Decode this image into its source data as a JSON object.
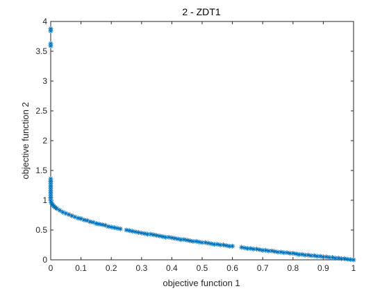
{
  "chart_data": {
    "type": "scatter",
    "title": "2  - ZDT1",
    "xlabel": "objective function 1",
    "ylabel": "objective function 2",
    "xlim": [
      0,
      1
    ],
    "ylim": [
      0,
      4
    ],
    "grid": false,
    "marker": "asterisk",
    "x_ticks": [
      "0",
      "0.1",
      "0.2",
      "0.3",
      "0.4",
      "0.5",
      "0.6",
      "0.7",
      "0.8",
      "0.9",
      "1"
    ],
    "y_ticks": [
      "0",
      "0.5",
      "1",
      "1.5",
      "2",
      "2.5",
      "3",
      "3.5",
      "4"
    ],
    "series": [
      {
        "color": "#0072BD",
        "points": [
          [
            0.0,
            3.88
          ],
          [
            0.0,
            3.84
          ],
          [
            0.0,
            3.63
          ],
          [
            0.0,
            3.59
          ],
          [
            0.0,
            1.36
          ],
          [
            0.0,
            1.32
          ],
          [
            0.0,
            1.28
          ],
          [
            0.0,
            1.24
          ],
          [
            0.0,
            1.2
          ],
          [
            0.0,
            1.16
          ],
          [
            0.0,
            1.12
          ],
          [
            0.0,
            1.08
          ],
          [
            0.0,
            1.04
          ],
          [
            0.0,
            1.0
          ],
          [
            0.002,
            0.96
          ],
          [
            0.004,
            0.94
          ],
          [
            0.007,
            0.92
          ],
          [
            0.01,
            0.9
          ],
          [
            0.015,
            0.88
          ],
          [
            0.02,
            0.86
          ],
          [
            0.03,
            0.83
          ],
          [
            0.04,
            0.8
          ],
          [
            0.05,
            0.78
          ],
          [
            0.06,
            0.76
          ],
          [
            0.07,
            0.74
          ],
          [
            0.08,
            0.72
          ],
          [
            0.09,
            0.7
          ],
          [
            0.1,
            0.69
          ],
          [
            0.11,
            0.67
          ],
          [
            0.12,
            0.66
          ],
          [
            0.13,
            0.64
          ],
          [
            0.14,
            0.63
          ],
          [
            0.15,
            0.61
          ],
          [
            0.16,
            0.6
          ],
          [
            0.17,
            0.59
          ],
          [
            0.18,
            0.58
          ],
          [
            0.19,
            0.56
          ],
          [
            0.2,
            0.55
          ],
          [
            0.21,
            0.54
          ],
          [
            0.22,
            0.53
          ],
          [
            0.23,
            0.52
          ],
          [
            0.25,
            0.5
          ],
          [
            0.26,
            0.49
          ],
          [
            0.27,
            0.48
          ],
          [
            0.28,
            0.47
          ],
          [
            0.29,
            0.46
          ],
          [
            0.3,
            0.45
          ],
          [
            0.31,
            0.44
          ],
          [
            0.32,
            0.43
          ],
          [
            0.33,
            0.43
          ],
          [
            0.34,
            0.42
          ],
          [
            0.35,
            0.41
          ],
          [
            0.36,
            0.4
          ],
          [
            0.37,
            0.39
          ],
          [
            0.38,
            0.38
          ],
          [
            0.39,
            0.38
          ],
          [
            0.4,
            0.37
          ],
          [
            0.41,
            0.36
          ],
          [
            0.42,
            0.35
          ],
          [
            0.43,
            0.34
          ],
          [
            0.44,
            0.34
          ],
          [
            0.45,
            0.33
          ],
          [
            0.46,
            0.32
          ],
          [
            0.47,
            0.31
          ],
          [
            0.48,
            0.31
          ],
          [
            0.49,
            0.3
          ],
          [
            0.5,
            0.29
          ],
          [
            0.51,
            0.29
          ],
          [
            0.52,
            0.28
          ],
          [
            0.53,
            0.27
          ],
          [
            0.54,
            0.26
          ],
          [
            0.55,
            0.26
          ],
          [
            0.56,
            0.25
          ],
          [
            0.57,
            0.25
          ],
          [
            0.58,
            0.24
          ],
          [
            0.59,
            0.23
          ],
          [
            0.6,
            0.23
          ],
          [
            0.63,
            0.21
          ],
          [
            0.64,
            0.2
          ],
          [
            0.65,
            0.19
          ],
          [
            0.66,
            0.19
          ],
          [
            0.67,
            0.18
          ],
          [
            0.68,
            0.18
          ],
          [
            0.69,
            0.17
          ],
          [
            0.7,
            0.16
          ],
          [
            0.71,
            0.16
          ],
          [
            0.72,
            0.15
          ],
          [
            0.73,
            0.15
          ],
          [
            0.74,
            0.14
          ],
          [
            0.75,
            0.13
          ],
          [
            0.76,
            0.13
          ],
          [
            0.77,
            0.12
          ],
          [
            0.78,
            0.12
          ],
          [
            0.79,
            0.11
          ],
          [
            0.8,
            0.11
          ],
          [
            0.81,
            0.1
          ],
          [
            0.82,
            0.09
          ],
          [
            0.83,
            0.09
          ],
          [
            0.84,
            0.08
          ],
          [
            0.85,
            0.08
          ],
          [
            0.86,
            0.07
          ],
          [
            0.87,
            0.07
          ],
          [
            0.88,
            0.06
          ],
          [
            0.89,
            0.06
          ],
          [
            0.9,
            0.05
          ],
          [
            0.91,
            0.05
          ],
          [
            0.92,
            0.04
          ],
          [
            0.93,
            0.04
          ],
          [
            0.94,
            0.03
          ],
          [
            0.95,
            0.03
          ],
          [
            0.96,
            0.02
          ],
          [
            0.97,
            0.02
          ],
          [
            0.98,
            0.01
          ],
          [
            0.99,
            0.005
          ],
          [
            1.0,
            0.0
          ]
        ]
      }
    ]
  }
}
